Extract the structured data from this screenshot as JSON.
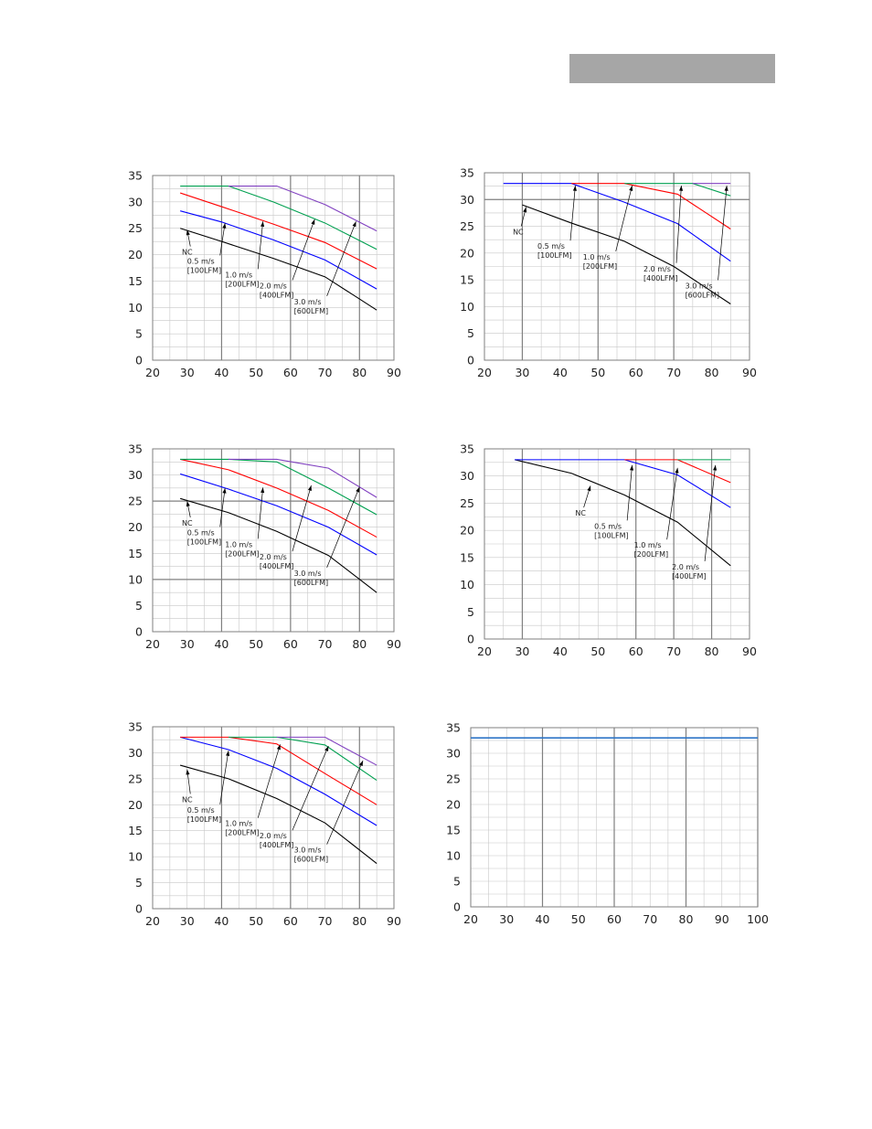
{
  "header": {
    "bar_color": "#a6a6a6"
  },
  "colors": {
    "NC": "#000000",
    "0.5": "#0000ff",
    "1.0": "#ff0000",
    "2.0": "#00a050",
    "3.0": "#8040c0",
    "flat": "#2e75c6",
    "grid": "#c8c8c8",
    "grid_major": "#808080"
  },
  "chart_data": [
    {
      "type": "line",
      "xlim": [
        20,
        90
      ],
      "ylim": [
        0,
        35
      ],
      "xticks": [
        20,
        30,
        40,
        50,
        60,
        70,
        80,
        90
      ],
      "yticks": [
        0,
        5,
        10,
        15,
        20,
        25,
        30,
        35
      ],
      "series": [
        {
          "name": "NC",
          "color": "#000000",
          "x": [
            28,
            40,
            55,
            70,
            85
          ],
          "y": [
            25,
            22.5,
            19.3,
            15.8,
            9.5
          ]
        },
        {
          "name": "0.5 m/s [100LFM]",
          "color": "#0000ff",
          "x": [
            28,
            40,
            55,
            70,
            85
          ],
          "y": [
            28.3,
            26.2,
            22.8,
            19.0,
            13.5
          ]
        },
        {
          "name": "1.0 m/s [200LFM]",
          "color": "#ff0000",
          "x": [
            28,
            40,
            55,
            70,
            85
          ],
          "y": [
            31.7,
            29.1,
            25.8,
            22.3,
            17.3
          ]
        },
        {
          "name": "2.0 m/s [400LFM]",
          "color": "#00a050",
          "x": [
            28,
            42,
            55,
            70,
            85
          ],
          "y": [
            33,
            33,
            30,
            26,
            21
          ]
        },
        {
          "name": "3.0 m/s [600LFM]",
          "color": "#8040c0",
          "x": [
            42,
            56,
            70,
            85
          ],
          "y": [
            33,
            33,
            29.5,
            24.5
          ]
        }
      ],
      "annotations": [
        {
          "lines": [
            "NC"
          ],
          "tx": 28.5,
          "ty": 20.0,
          "ax": 30,
          "ay": 24.7
        },
        {
          "lines": [
            "0.5 m/s",
            "[100LFM]"
          ],
          "tx": 30,
          "ty": 18.3,
          "ax": 41,
          "ay": 26.0
        },
        {
          "lines": [
            "1.0 m/s",
            "[200LFM]"
          ],
          "tx": 41,
          "ty": 15.7,
          "ax": 52,
          "ay": 26.3
        },
        {
          "lines": [
            "2.0 m/s",
            "[400LFM]"
          ],
          "tx": 51,
          "ty": 13.6,
          "ax": 67,
          "ay": 26.7
        },
        {
          "lines": [
            "3.0 m/s",
            "[600LFM]"
          ],
          "tx": 61,
          "ty": 10.6,
          "ax": 79,
          "ay": 26.3
        }
      ]
    },
    {
      "type": "line",
      "xlim": [
        20,
        90
      ],
      "ylim": [
        0,
        35
      ],
      "xticks": [
        20,
        30,
        40,
        50,
        60,
        70,
        80,
        90
      ],
      "yticks": [
        0,
        5,
        10,
        15,
        20,
        25,
        30,
        35
      ],
      "series": [
        {
          "name": "NC",
          "color": "#000000",
          "x": [
            30,
            43,
            57,
            70,
            85
          ],
          "y": [
            29,
            25.6,
            22.2,
            17.5,
            10.5
          ]
        },
        {
          "name": "0.5 m/s [100LFM]",
          "color": "#0000ff",
          "x": [
            25,
            43,
            57,
            71,
            85
          ],
          "y": [
            33,
            33,
            29.5,
            25.5,
            18.5
          ]
        },
        {
          "name": "1.0 m/s [200LFM]",
          "color": "#ff0000",
          "x": [
            43,
            57,
            71,
            85
          ],
          "y": [
            33,
            33,
            31,
            24.5
          ]
        },
        {
          "name": "2.0 m/s [400LFM]",
          "color": "#00a050",
          "x": [
            57,
            75,
            85
          ],
          "y": [
            33,
            33,
            30.7
          ]
        },
        {
          "name": "3.0 m/s [600LFM]",
          "color": "#8040c0",
          "x": [
            75,
            85
          ],
          "y": [
            33,
            33
          ]
        }
      ],
      "annotations": [
        {
          "lines": [
            "NC"
          ],
          "tx": 27.5,
          "ty": 23.5,
          "ax": 31,
          "ay": 28.6
        },
        {
          "lines": [
            "0.5 m/s",
            "[100LFM]"
          ],
          "tx": 34,
          "ty": 20.8,
          "ax": 44,
          "ay": 32.6
        },
        {
          "lines": [
            "1.0 m/s",
            "[200LFM]"
          ],
          "tx": 46,
          "ty": 18.8,
          "ax": 59,
          "ay": 32.6
        },
        {
          "lines": [
            "2.0 m/s",
            "[400LFM]"
          ],
          "tx": 62,
          "ty": 16.6,
          "ax": 72,
          "ay": 32.6
        },
        {
          "lines": [
            "3.0 m/s",
            "[600LFM]"
          ],
          "tx": 73,
          "ty": 13.4,
          "ax": 84,
          "ay": 32.6
        }
      ]
    },
    {
      "type": "line",
      "xlim": [
        20,
        90
      ],
      "ylim": [
        0,
        35
      ],
      "xticks": [
        20,
        30,
        40,
        50,
        60,
        70,
        80,
        90
      ],
      "yticks": [
        0,
        5,
        10,
        15,
        20,
        25,
        30,
        35
      ],
      "series": [
        {
          "name": "NC",
          "color": "#000000",
          "x": [
            28,
            42,
            56,
            71,
            85
          ],
          "y": [
            25.5,
            22.8,
            19.2,
            14.6,
            7.5
          ]
        },
        {
          "name": "0.5 m/s [100LFM]",
          "color": "#0000ff",
          "x": [
            28,
            42,
            56,
            71,
            85
          ],
          "y": [
            30.2,
            27.3,
            24.1,
            20,
            14.7
          ]
        },
        {
          "name": "1.0 m/s [200LFM]",
          "color": "#ff0000",
          "x": [
            28,
            42,
            56,
            71,
            85
          ],
          "y": [
            33,
            31,
            27.5,
            23.2,
            18.1
          ]
        },
        {
          "name": "2.0 m/s [400LFM]",
          "color": "#00a050",
          "x": [
            28,
            42,
            56,
            71,
            85
          ],
          "y": [
            33,
            33,
            32.5,
            27.5,
            22.4
          ]
        },
        {
          "name": "3.0 m/s [600LFM]",
          "color": "#8040c0",
          "x": [
            42,
            56,
            71,
            85
          ],
          "y": [
            33,
            33,
            31.3,
            25.7
          ]
        }
      ],
      "annotations": [
        {
          "lines": [
            "NC"
          ],
          "tx": 28.5,
          "ty": 20.3,
          "ax": 30,
          "ay": 25.0
        },
        {
          "lines": [
            "0.5 m/s",
            "[100LFM]"
          ],
          "tx": 30,
          "ty": 18.5,
          "ax": 41,
          "ay": 27.5
        },
        {
          "lines": [
            "1.0 m/s",
            "[200LFM]"
          ],
          "tx": 41,
          "ty": 16.2,
          "ax": 52,
          "ay": 27.6
        },
        {
          "lines": [
            "2.0 m/s",
            "[400LFM]"
          ],
          "tx": 51,
          "ty": 13.8,
          "ax": 66,
          "ay": 28.0
        },
        {
          "lines": [
            "3.0 m/s",
            "[600LFM]"
          ],
          "tx": 61,
          "ty": 10.7,
          "ax": 80,
          "ay": 27.7
        }
      ]
    },
    {
      "type": "line",
      "xlim": [
        20,
        90
      ],
      "ylim": [
        0,
        35
      ],
      "xticks": [
        20,
        30,
        40,
        50,
        60,
        70,
        80,
        90
      ],
      "yticks": [
        0,
        5,
        10,
        15,
        20,
        25,
        30,
        35
      ],
      "series": [
        {
          "name": "NC",
          "color": "#000000",
          "x": [
            28,
            43,
            57,
            71,
            85
          ],
          "y": [
            33,
            30.5,
            26.5,
            21.5,
            13.5
          ]
        },
        {
          "name": "0.5 m/s [100LFM]",
          "color": "#0000ff",
          "x": [
            28,
            57,
            71,
            85
          ],
          "y": [
            33,
            33,
            30.2,
            24.2
          ]
        },
        {
          "name": "1.0 m/s [200LFM]",
          "color": "#ff0000",
          "x": [
            57,
            71,
            85
          ],
          "y": [
            33,
            33,
            28.8
          ]
        },
        {
          "name": "2.0 m/s [400LFM]",
          "color": "#00a050",
          "x": [
            71,
            85
          ],
          "y": [
            33,
            33
          ]
        }
      ],
      "annotations": [
        {
          "lines": [
            "NC"
          ],
          "tx": 44,
          "ty": 22.7,
          "ax": 48,
          "ay": 28.2
        },
        {
          "lines": [
            "0.5 m/s",
            "[100LFM]"
          ],
          "tx": 49,
          "ty": 20.3,
          "ax": 59,
          "ay": 32.0
        },
        {
          "lines": [
            "1.0 m/s",
            "[200LFM]"
          ],
          "tx": 59.5,
          "ty": 16.8,
          "ax": 71,
          "ay": 31.5
        },
        {
          "lines": [
            "2.0 m/s",
            "[400LFM]"
          ],
          "tx": 69.5,
          "ty": 12.8,
          "ax": 81,
          "ay": 32.0
        }
      ]
    },
    {
      "type": "line",
      "xlim": [
        20,
        90
      ],
      "ylim": [
        0,
        35
      ],
      "xticks": [
        20,
        30,
        40,
        50,
        60,
        70,
        80,
        90
      ],
      "yticks": [
        0,
        5,
        10,
        15,
        20,
        25,
        30,
        35
      ],
      "series": [
        {
          "name": "NC",
          "color": "#000000",
          "x": [
            28,
            42,
            56,
            70,
            85
          ],
          "y": [
            27.6,
            25,
            21.2,
            16.5,
            8.7
          ]
        },
        {
          "name": "0.5 m/s [100LFM]",
          "color": "#0000ff",
          "x": [
            28,
            42,
            56,
            70,
            85
          ],
          "y": [
            33,
            30.6,
            27,
            22,
            16
          ]
        },
        {
          "name": "1.0 m/s [200LFM]",
          "color": "#ff0000",
          "x": [
            28,
            42,
            56,
            70,
            85
          ],
          "y": [
            33,
            33,
            31.7,
            26,
            20
          ]
        },
        {
          "name": "2.0 m/s [400LFM]",
          "color": "#00a050",
          "x": [
            42,
            56,
            70,
            85
          ],
          "y": [
            33,
            33,
            31.5,
            24.7
          ]
        },
        {
          "name": "3.0 m/s [600LFM]",
          "color": "#8040c0",
          "x": [
            56,
            70,
            85
          ],
          "y": [
            33,
            33,
            27.6
          ]
        }
      ],
      "annotations": [
        {
          "lines": [
            "NC"
          ],
          "tx": 28.5,
          "ty": 20.5,
          "ax": 30,
          "ay": 26.8
        },
        {
          "lines": [
            "0.5 m/s",
            "[100LFM]"
          ],
          "tx": 30,
          "ty": 18.5,
          "ax": 42,
          "ay": 30.4
        },
        {
          "lines": [
            "1.0 m/s",
            "[200LFM]"
          ],
          "tx": 41,
          "ty": 15.9,
          "ax": 57,
          "ay": 31.6
        },
        {
          "lines": [
            "2.0 m/s",
            "[400LFM]"
          ],
          "tx": 51,
          "ty": 13.5,
          "ax": 71,
          "ay": 31.3
        },
        {
          "lines": [
            "3.0 m/s",
            "[600LFM]"
          ],
          "tx": 61,
          "ty": 10.8,
          "ax": 81,
          "ay": 28.5
        }
      ]
    },
    {
      "type": "line",
      "xlim": [
        20,
        100
      ],
      "ylim": [
        0,
        35
      ],
      "xticks": [
        20,
        30,
        40,
        50,
        60,
        70,
        80,
        90,
        100
      ],
      "yticks": [
        0,
        5,
        10,
        15,
        20,
        25,
        30,
        35
      ],
      "series": [
        {
          "color": "#2e75c6",
          "x": [
            20,
            100
          ],
          "y": [
            33,
            33
          ]
        }
      ],
      "annotations": []
    }
  ]
}
